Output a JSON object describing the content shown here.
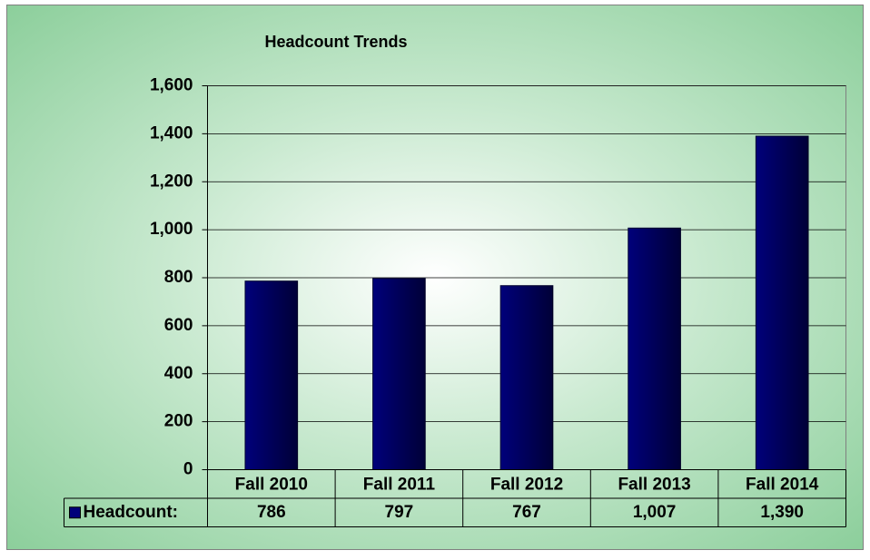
{
  "chart_data": {
    "type": "bar",
    "title": "Headcount Trends",
    "categories": [
      "Fall 2010",
      "Fall 2011",
      "Fall 2012",
      "Fall 2013",
      "Fall 2014"
    ],
    "series": [
      {
        "name": "Headcount:",
        "color": "#00007a",
        "values": [
          786,
          797,
          767,
          1007,
          1390
        ],
        "value_labels": [
          "786",
          "797",
          "767",
          "1,007",
          "1,390"
        ]
      }
    ],
    "ylim": [
      0,
      1600
    ],
    "yticks": [
      0,
      200,
      400,
      600,
      800,
      {
        "value": 1000,
        "label": "1,000"
      },
      {
        "value": 1200,
        "label": "1,200"
      },
      {
        "value": 1400,
        "label": "1,400"
      },
      {
        "value": 1600,
        "label": "1,600"
      }
    ],
    "grid": true,
    "legend": "data-table"
  }
}
